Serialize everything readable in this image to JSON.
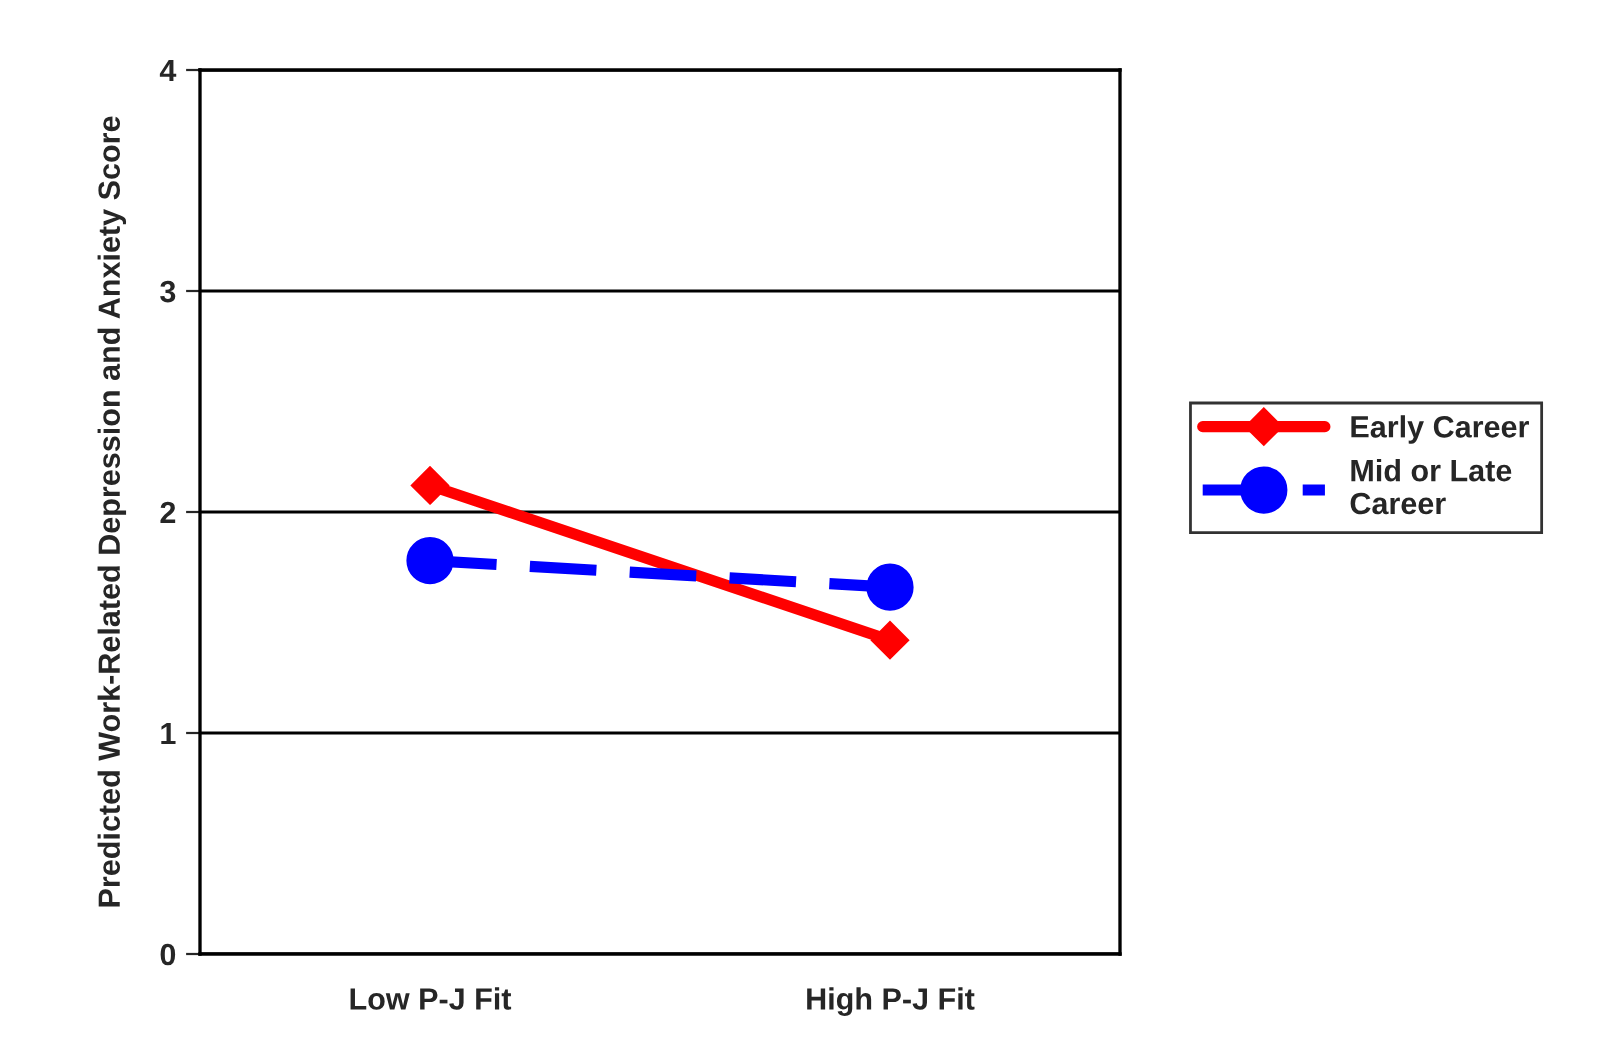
{
  "chart_data": {
    "type": "line",
    "ylabel": "Predicted Work-Related Depression and Anxiety Score",
    "categories": [
      "Low P-J Fit",
      "High P-J Fit"
    ],
    "series": [
      {
        "name": "Early Career",
        "color": "#ff0000",
        "values": [
          2.12,
          1.42
        ],
        "marker": "diamond",
        "line_style": "solid"
      },
      {
        "name": "Mid or Late Career",
        "color": "#0000ff",
        "values": [
          1.78,
          1.66
        ],
        "marker": "circle",
        "line_style": "dashed"
      }
    ],
    "ylim": [
      0,
      4
    ],
    "yticks": [
      0,
      1,
      2,
      3,
      4
    ],
    "grid": "y",
    "legend": "right"
  }
}
